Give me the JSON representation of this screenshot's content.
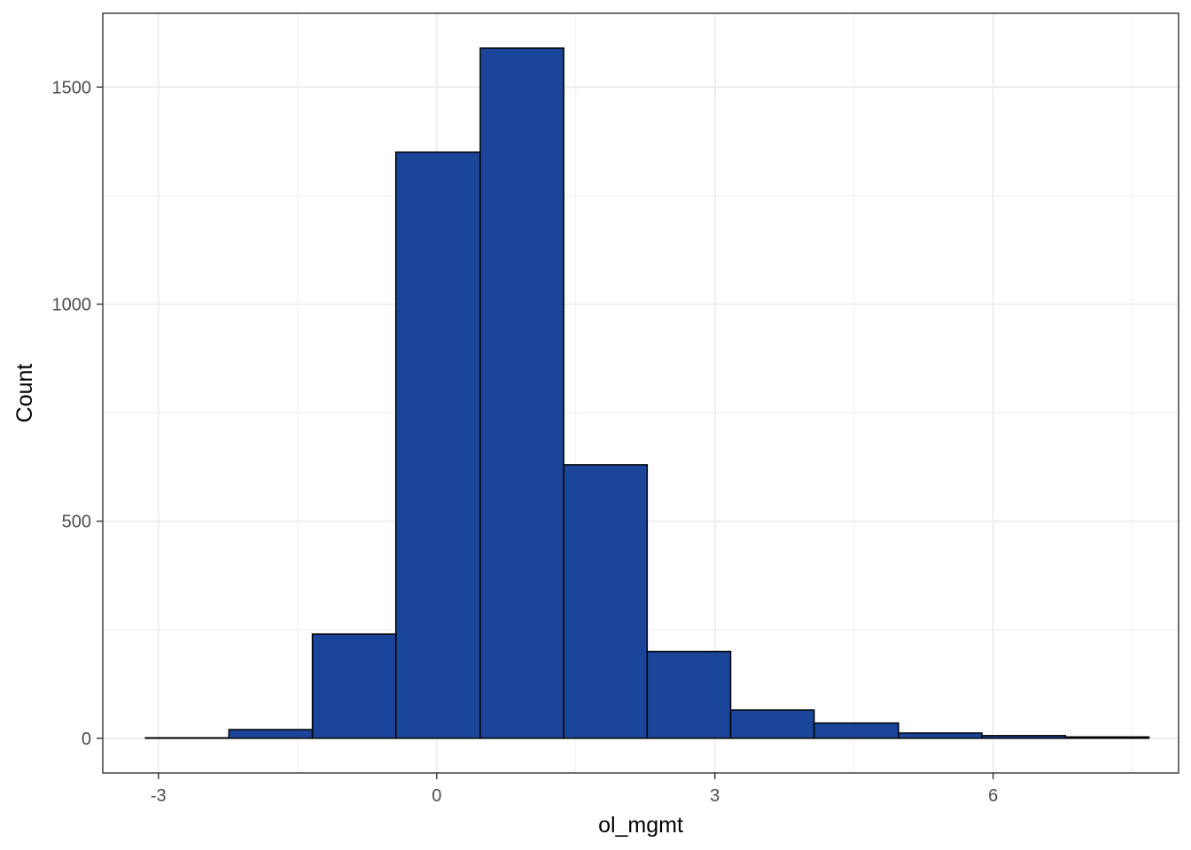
{
  "chart_data": {
    "type": "bar",
    "subtype": "histogram",
    "xlabel": "ol_mgmt",
    "ylabel": "Count",
    "xlim": [
      -3.6,
      8.0
    ],
    "ylim": [
      -80,
      1670
    ],
    "x_ticks": [
      -3,
      0,
      3,
      6
    ],
    "x_tick_labels": [
      "-3",
      "0",
      "3",
      "6"
    ],
    "y_ticks": [
      0,
      500,
      1000,
      1500
    ],
    "y_tick_labels": [
      "0",
      "500",
      "1000",
      "1500"
    ],
    "grid": true,
    "legend": "none",
    "colors": {
      "bar_fill": "#1a4599",
      "bar_outline": "#000000",
      "grid": "#ebebeb",
      "panel_border": "#333333"
    },
    "bins": [
      {
        "x_start": -3.14,
        "x_end": -2.24,
        "count": 1
      },
      {
        "x_start": -2.24,
        "x_end": -1.34,
        "count": 20
      },
      {
        "x_start": -1.34,
        "x_end": -0.44,
        "count": 240
      },
      {
        "x_start": -0.44,
        "x_end": 0.47,
        "count": 1350
      },
      {
        "x_start": 0.47,
        "x_end": 1.37,
        "count": 1590
      },
      {
        "x_start": 1.37,
        "x_end": 2.27,
        "count": 630
      },
      {
        "x_start": 2.27,
        "x_end": 3.17,
        "count": 200
      },
      {
        "x_start": 3.17,
        "x_end": 4.07,
        "count": 65
      },
      {
        "x_start": 4.07,
        "x_end": 4.98,
        "count": 35
      },
      {
        "x_start": 4.98,
        "x_end": 5.88,
        "count": 12
      },
      {
        "x_start": 5.88,
        "x_end": 6.78,
        "count": 6
      },
      {
        "x_start": 6.78,
        "x_end": 7.68,
        "count": 3
      }
    ]
  }
}
